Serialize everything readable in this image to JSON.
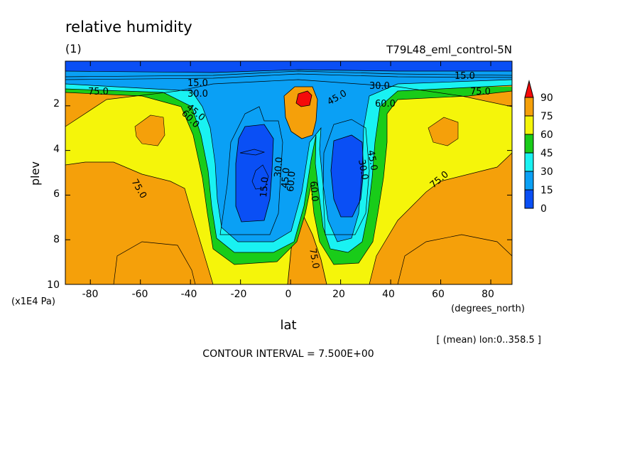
{
  "chart_data": {
    "type": "heatmap",
    "title": "relative humidity",
    "subtitle": "(1)",
    "run_label": "T79L48_eml_control-5N",
    "xlabel": "lat",
    "xunits": "(degrees_north)",
    "ylabel": "plev",
    "yunits": "(x1E4 Pa)",
    "averaging_note": "[ (mean) lon:0..358.5 ]",
    "footer": "CONTOUR INTERVAL = 7.500E+00",
    "xlim": [
      -90,
      88.5
    ],
    "ylim": [
      10,
      0
    ],
    "y_scale": "linear, inverted (pressure increases downward)",
    "x_ticks": [
      "-80",
      "-60",
      "-40",
      "-20",
      "0",
      "20",
      "40",
      "60",
      "80"
    ],
    "y_ticks": [
      "2",
      "4",
      "6",
      "8",
      "10"
    ],
    "contour_interval": 7.5,
    "colorbar": {
      "labels": [
        "90",
        "75",
        "60",
        "45",
        "30",
        "15",
        "0"
      ],
      "levels": [
        0,
        15,
        30,
        45,
        60,
        75,
        90
      ],
      "colors": [
        "#0a4ff5",
        "#0aa0f5",
        "#19f2f2",
        "#19cc19",
        "#f5f50a",
        "#f5a00a",
        "#f50a0a"
      ],
      "triangle_top": true
    },
    "contour_labels": [
      "15.0",
      "30.0",
      "45.0",
      "60.0",
      "75.0",
      "15.0",
      "30.0",
      "75.0",
      "45.0",
      "60.0",
      "75.0",
      "75.0",
      "75.0",
      "15.0",
      "30.0",
      "45.0",
      "60.0",
      "60.0",
      "45.0",
      "30.0",
      "75.0",
      "60.0",
      "30.0"
    ],
    "grid": false,
    "legend": "right (colorbar)"
  }
}
